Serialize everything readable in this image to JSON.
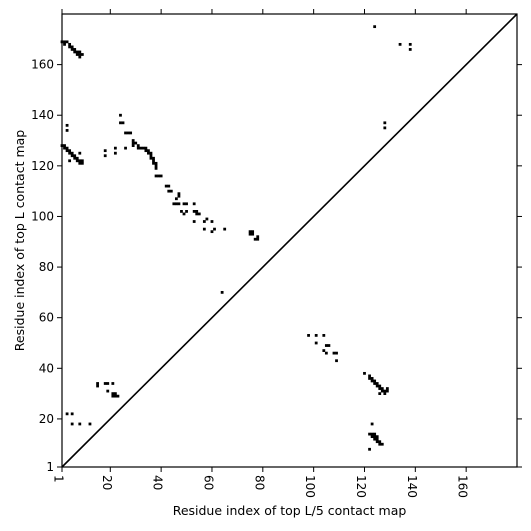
{
  "chart_data": {
    "type": "scatter",
    "title": "",
    "xlabel": "Residue index of top L/5 contact map",
    "ylabel": "Residue index of top L contact map",
    "xlim": [
      1,
      180
    ],
    "ylim": [
      1,
      180
    ],
    "xticks": [
      1,
      20,
      40,
      60,
      80,
      100,
      120,
      140,
      160
    ],
    "yticks": [
      1,
      20,
      40,
      60,
      80,
      100,
      120,
      140,
      160
    ],
    "xtick_labels": [
      "1",
      "20",
      "40",
      "60",
      "80",
      "100",
      "120",
      "140",
      "160"
    ],
    "ytick_labels": [
      "1",
      "20",
      "40",
      "60",
      "80",
      "100",
      "120",
      "140",
      "160"
    ],
    "tick_rotation": -90,
    "grid": false,
    "marker_color": "#000000",
    "diagonal_line": true,
    "series": [
      {
        "values": [
          [
            1,
            169
          ],
          [
            2,
            169
          ],
          [
            3,
            169
          ],
          [
            2,
            168
          ],
          [
            4,
            168
          ],
          [
            4,
            167
          ],
          [
            5,
            167
          ],
          [
            5,
            166
          ],
          [
            6,
            166
          ],
          [
            6,
            165
          ],
          [
            7,
            165
          ],
          [
            8,
            165
          ],
          [
            7,
            164
          ],
          [
            8,
            164
          ],
          [
            9,
            164
          ],
          [
            8,
            163
          ],
          [
            1,
            128
          ],
          [
            2,
            128
          ],
          [
            2,
            127
          ],
          [
            3,
            127
          ],
          [
            3,
            126
          ],
          [
            4,
            126
          ],
          [
            4,
            125
          ],
          [
            5,
            125
          ],
          [
            5,
            124
          ],
          [
            6,
            124
          ],
          [
            6,
            123
          ],
          [
            7,
            123
          ],
          [
            7,
            122
          ],
          [
            8,
            122
          ],
          [
            8,
            121
          ],
          [
            9,
            121
          ],
          [
            9,
            122
          ],
          [
            3,
            136
          ],
          [
            3,
            134
          ],
          [
            4,
            122
          ],
          [
            8,
            125
          ],
          [
            24,
            140
          ],
          [
            24,
            137
          ],
          [
            25,
            137
          ],
          [
            26,
            133
          ],
          [
            27,
            133
          ],
          [
            28,
            133
          ],
          [
            29,
            130
          ],
          [
            29,
            129
          ],
          [
            30,
            129
          ],
          [
            31,
            128
          ],
          [
            31,
            127
          ],
          [
            32,
            127
          ],
          [
            33,
            127
          ],
          [
            34,
            127
          ],
          [
            34,
            126
          ],
          [
            35,
            126
          ],
          [
            35,
            125
          ],
          [
            36,
            125
          ],
          [
            36,
            124
          ],
          [
            36,
            123
          ],
          [
            37,
            123
          ],
          [
            37,
            122
          ],
          [
            37,
            121
          ],
          [
            38,
            121
          ],
          [
            38,
            120
          ],
          [
            38,
            119
          ],
          [
            18,
            126
          ],
          [
            18,
            124
          ],
          [
            22,
            127
          ],
          [
            22,
            125
          ],
          [
            26,
            127
          ],
          [
            29,
            128
          ],
          [
            38,
            116
          ],
          [
            39,
            116
          ],
          [
            40,
            116
          ],
          [
            42,
            112
          ],
          [
            43,
            112
          ],
          [
            43,
            110
          ],
          [
            44,
            110
          ],
          [
            47,
            109
          ],
          [
            47,
            108
          ],
          [
            46,
            107
          ],
          [
            45,
            105
          ],
          [
            46,
            105
          ],
          [
            47,
            105
          ],
          [
            49,
            105
          ],
          [
            50,
            105
          ],
          [
            48,
            102
          ],
          [
            50,
            102
          ],
          [
            49,
            101
          ],
          [
            53,
            105
          ],
          [
            53,
            102
          ],
          [
            54,
            102
          ],
          [
            54,
            101
          ],
          [
            55,
            101
          ],
          [
            53,
            98
          ],
          [
            57,
            98
          ],
          [
            58,
            99
          ],
          [
            60,
            98
          ],
          [
            57,
            95
          ],
          [
            61,
            95
          ],
          [
            60,
            94
          ],
          [
            65,
            95
          ],
          [
            64,
            70
          ],
          [
            75,
            94
          ],
          [
            76,
            94
          ],
          [
            75,
            93
          ],
          [
            76,
            93
          ],
          [
            78,
            92
          ],
          [
            77,
            91
          ],
          [
            78,
            91
          ],
          [
            124,
            175
          ],
          [
            134,
            168
          ],
          [
            138,
            168
          ],
          [
            138,
            166
          ],
          [
            128,
            137
          ],
          [
            128,
            135
          ],
          [
            98,
            53
          ],
          [
            101,
            53
          ],
          [
            104,
            53
          ],
          [
            101,
            50
          ],
          [
            105,
            49
          ],
          [
            104,
            47
          ],
          [
            106,
            49
          ],
          [
            108,
            46
          ],
          [
            109,
            46
          ],
          [
            109,
            43
          ],
          [
            105,
            46
          ],
          [
            120,
            38
          ],
          [
            122,
            37
          ],
          [
            122,
            36
          ],
          [
            123,
            36
          ],
          [
            123,
            35
          ],
          [
            124,
            35
          ],
          [
            124,
            34
          ],
          [
            125,
            34
          ],
          [
            125,
            33
          ],
          [
            126,
            33
          ],
          [
            126,
            32
          ],
          [
            127,
            32
          ],
          [
            127,
            31
          ],
          [
            128,
            31
          ],
          [
            128,
            30
          ],
          [
            129,
            32
          ],
          [
            129,
            31
          ],
          [
            126,
            30
          ],
          [
            122,
            14
          ],
          [
            123,
            14
          ],
          [
            124,
            14
          ],
          [
            123,
            13
          ],
          [
            124,
            13
          ],
          [
            125,
            13
          ],
          [
            124,
            12
          ],
          [
            125,
            12
          ],
          [
            125,
            11
          ],
          [
            126,
            11
          ],
          [
            126,
            10
          ],
          [
            127,
            10
          ],
          [
            123,
            18
          ],
          [
            122,
            8
          ],
          [
            3,
            22
          ],
          [
            5,
            22
          ],
          [
            5,
            18
          ],
          [
            8,
            18
          ],
          [
            12,
            18
          ],
          [
            15,
            34
          ],
          [
            15,
            33
          ],
          [
            18,
            34
          ],
          [
            19,
            34
          ],
          [
            19,
            31
          ],
          [
            21,
            34
          ],
          [
            21,
            30
          ],
          [
            22,
            30
          ],
          [
            22,
            29
          ],
          [
            23,
            29
          ],
          [
            21,
            29
          ]
        ]
      }
    ]
  }
}
